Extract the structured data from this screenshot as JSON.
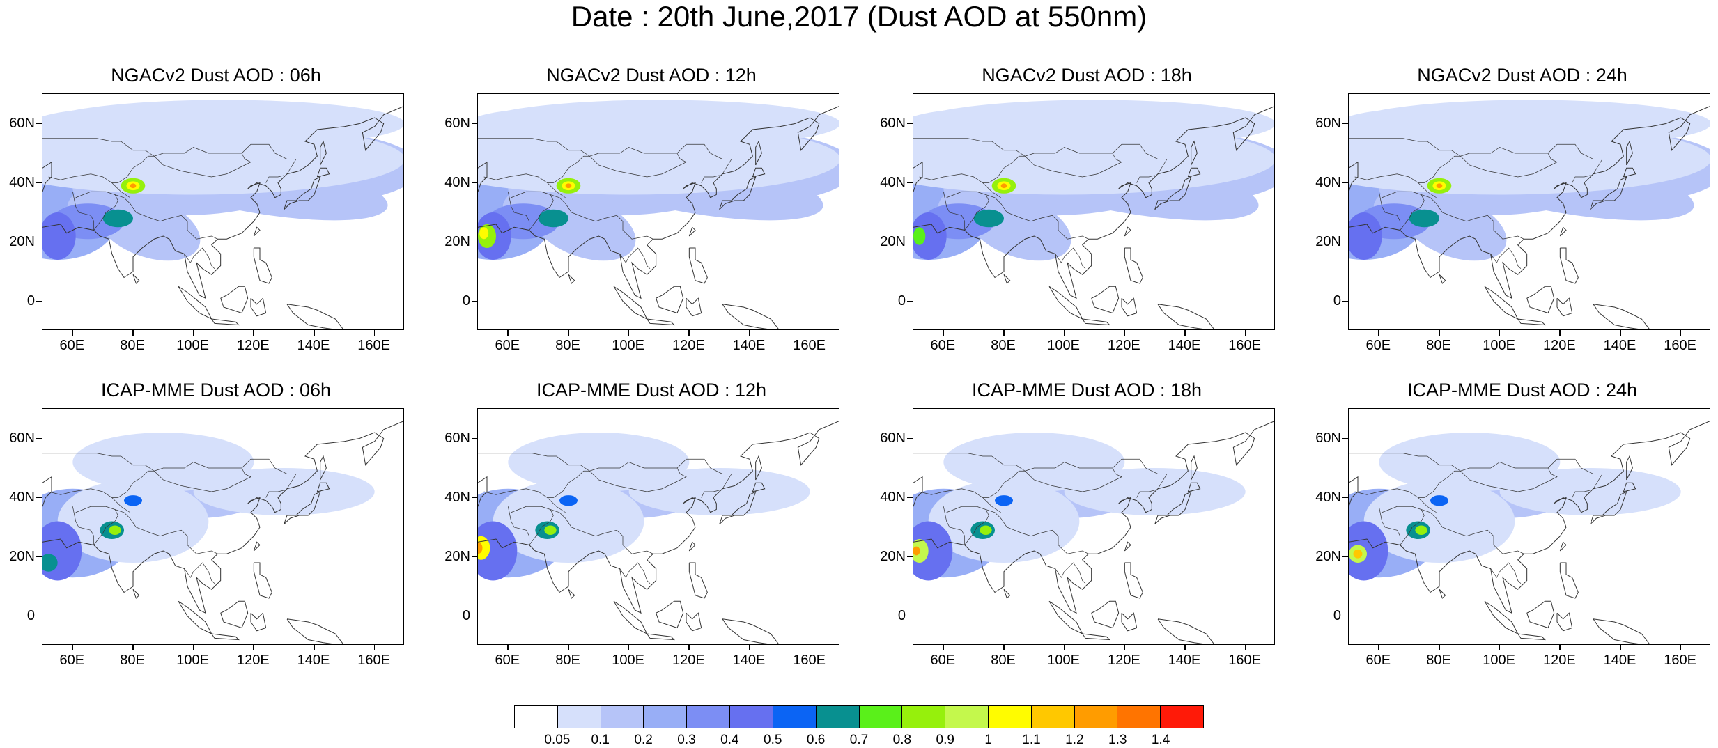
{
  "title": "Date : 20th June,2017 (Dust AOD at 550nm)",
  "x_ticks": [
    "60E",
    "80E",
    "100E",
    "120E",
    "140E",
    "160E"
  ],
  "y_ticks": [
    "60N",
    "40N",
    "20N",
    "0"
  ],
  "map_extent": {
    "lon": [
      50,
      170
    ],
    "lat": [
      -10,
      70
    ]
  },
  "panels": [
    {
      "title": "NGACv2 Dust AOD : 06h",
      "model": "NGACv2",
      "hour": "06h"
    },
    {
      "title": "NGACv2 Dust AOD : 12h",
      "model": "NGACv2",
      "hour": "12h"
    },
    {
      "title": "NGACv2 Dust AOD : 18h",
      "model": "NGACv2",
      "hour": "18h"
    },
    {
      "title": "NGACv2 Dust AOD : 24h",
      "model": "NGACv2",
      "hour": "24h"
    },
    {
      "title": "ICAP-MME Dust AOD : 06h",
      "model": "ICAP-MME",
      "hour": "06h"
    },
    {
      "title": "ICAP-MME Dust AOD : 12h",
      "model": "ICAP-MME",
      "hour": "12h"
    },
    {
      "title": "ICAP-MME Dust AOD : 18h",
      "model": "ICAP-MME",
      "hour": "18h"
    },
    {
      "title": "ICAP-MME Dust AOD : 24h",
      "model": "ICAP-MME",
      "hour": "24h"
    }
  ],
  "colorbar": {
    "levels": [
      "0.05",
      "0.1",
      "0.2",
      "0.3",
      "0.4",
      "0.5",
      "0.6",
      "0.7",
      "0.8",
      "0.9",
      "1",
      "1.1",
      "1.2",
      "1.3",
      "1.4"
    ],
    "colors": [
      "#ffffff",
      "#d6e0fb",
      "#b6c4f8",
      "#98aef6",
      "#7c8ef4",
      "#6670f0",
      "#0b64f4",
      "#089090",
      "#5af01a",
      "#96f00c",
      "#c4f84c",
      "#fffc00",
      "#ffc800",
      "#ff9c00",
      "#ff7400",
      "#ff1a08"
    ]
  }
}
